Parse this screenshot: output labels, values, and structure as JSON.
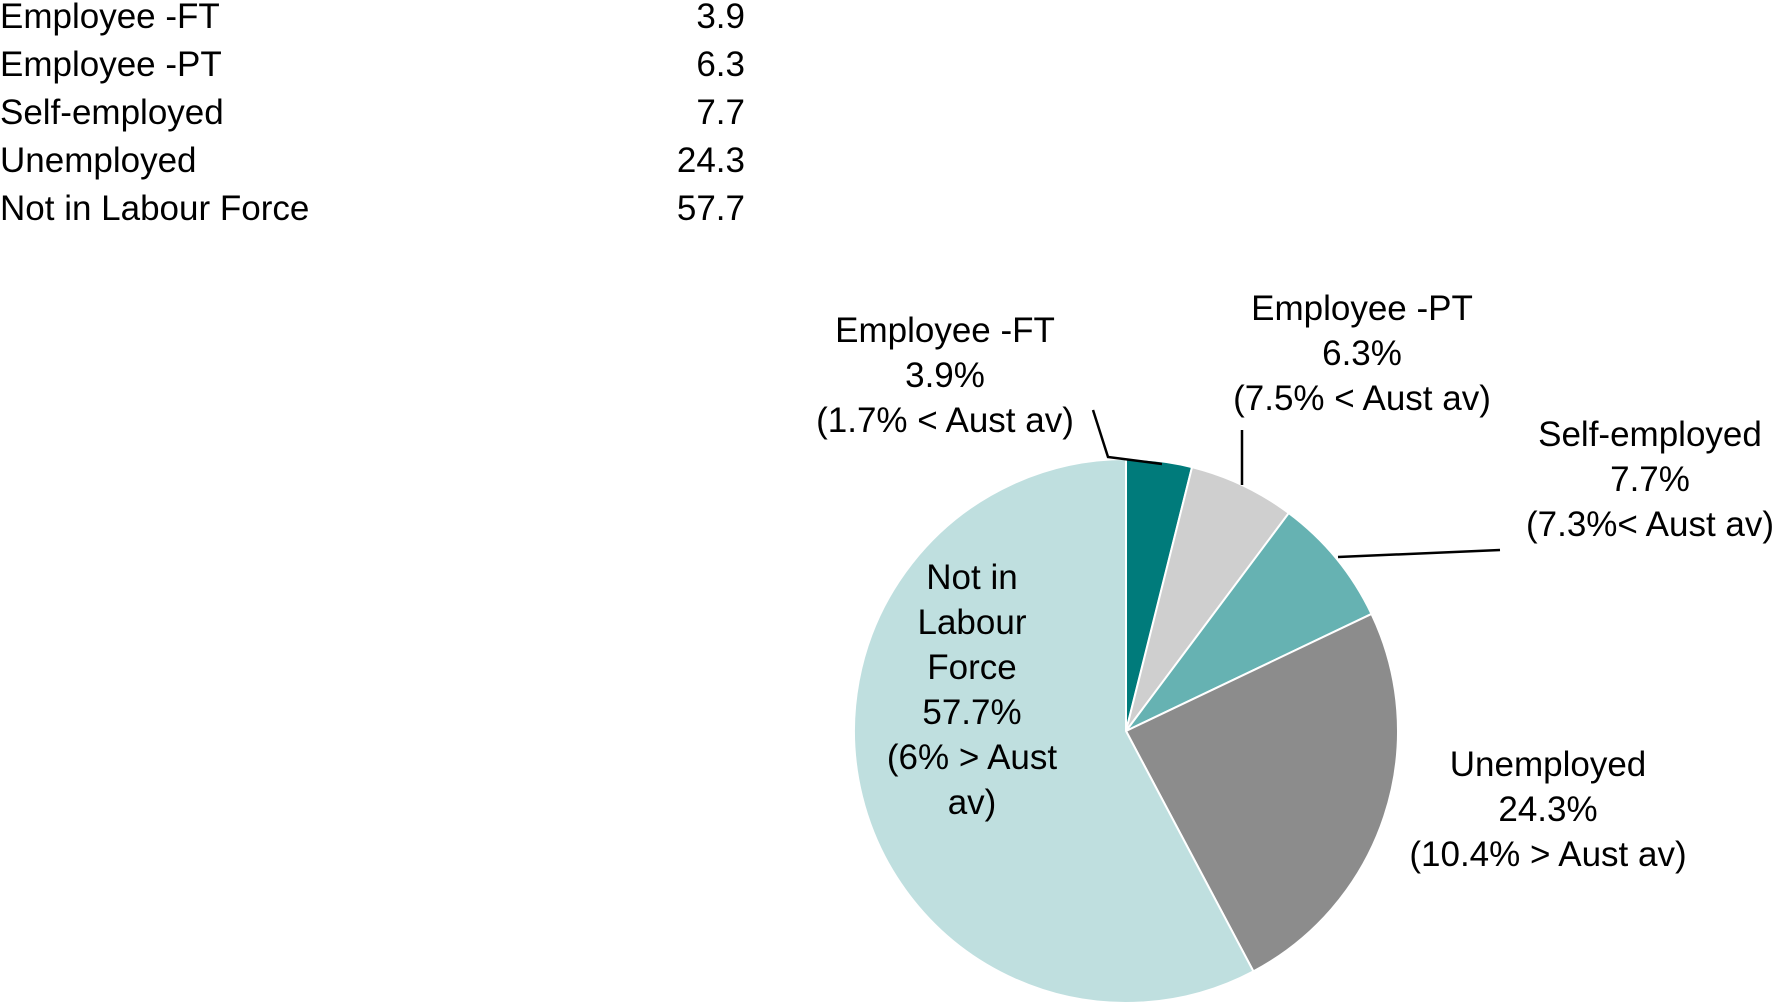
{
  "table": {
    "rows": [
      {
        "label": "Employee -FT",
        "value": "3.9"
      },
      {
        "label": "Employee -PT",
        "value": "6.3"
      },
      {
        "label": "Self-employed",
        "value": "7.7"
      },
      {
        "label": "Unemployed",
        "value": "24.3"
      },
      {
        "label": "Not in Labour Force",
        "value": "57.7"
      }
    ]
  },
  "chart_data": {
    "type": "pie",
    "title": "",
    "slices": [
      {
        "name": "Employee -FT",
        "value": 3.9,
        "color": "#007b7b",
        "label_lines": [
          "Employee -FT",
          "3.9%",
          "(1.7% < Aust av)"
        ]
      },
      {
        "name": "Employee -PT",
        "value": 6.3,
        "color": "#cfcfcf",
        "label_lines": [
          "Employee -PT",
          "6.3%",
          "(7.5% < Aust av)"
        ]
      },
      {
        "name": "Self-employed",
        "value": 7.7,
        "color": "#66b2b2",
        "label_lines": [
          "Self-employed",
          "7.7%",
          "(7.3%< Aust av)"
        ]
      },
      {
        "name": "Unemployed",
        "value": 24.3,
        "color": "#8c8c8c",
        "label_lines": [
          "Unemployed",
          "24.3%",
          "(10.4% > Aust av)"
        ]
      },
      {
        "name": "Not in Labour Force",
        "value": 57.7,
        "color": "#bfdfdf",
        "label_lines": [
          "Not in",
          "Labour",
          "Force",
          "57.7%",
          "(6% > Aust",
          "av)"
        ]
      }
    ],
    "start_angle": "12 o'clock",
    "direction": "clockwise",
    "legend": "none"
  }
}
